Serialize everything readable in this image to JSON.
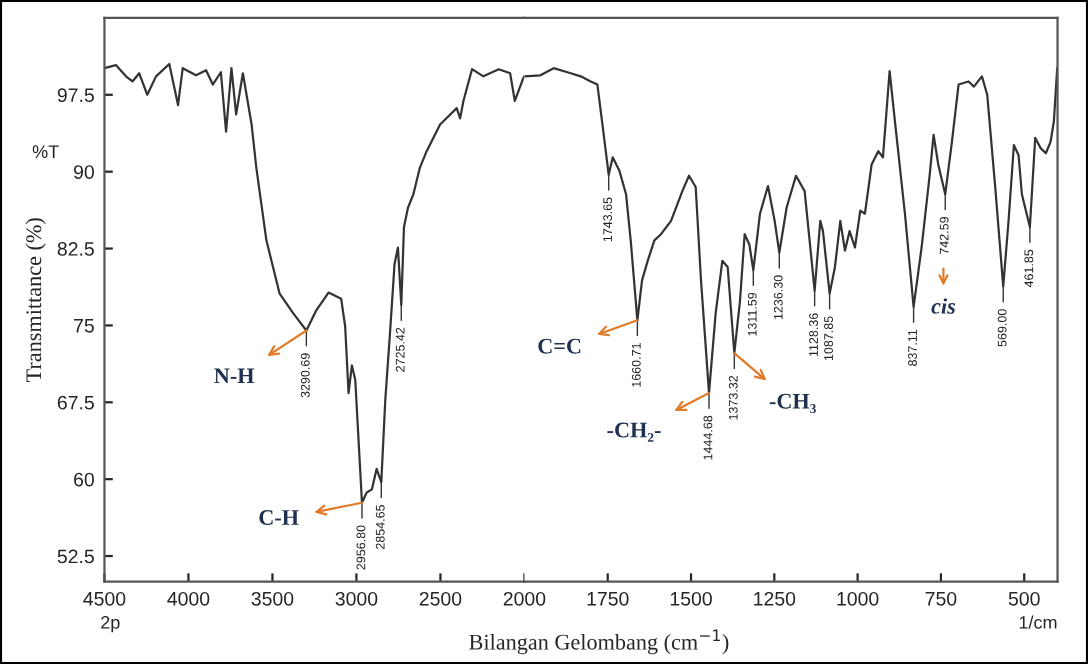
{
  "chart_data": [
    {
      "type": "line",
      "ylabel": "Transmittance (%)",
      "xlim": [
        4500,
        2000
      ],
      "xticks": [
        4500,
        4000,
        3500,
        3000,
        2500,
        2000
      ],
      "ylim": [
        50,
        105
      ],
      "yticks": [
        52.5,
        60,
        67.5,
        75,
        82.5,
        90,
        97.5
      ],
      "grid": false,
      "x": [
        4500,
        4432,
        4372,
        4333,
        4293,
        4245,
        4193,
        4114,
        4062,
        4034,
        3955,
        3895,
        3855,
        3807,
        3776,
        3744,
        3716,
        3676,
        3624,
        3596,
        3536,
        3457,
        3377,
        3298,
        3238,
        3166,
        3091,
        3067,
        3047,
        3027,
        3007,
        2967,
        2939,
        2908,
        2880,
        2852,
        2828,
        2800,
        2773,
        2753,
        2733,
        2717,
        2693,
        2661,
        2622,
        2582,
        2502,
        2403,
        2383,
        2363,
        2312,
        2244,
        2153,
        2085,
        2057,
        2005,
        2000
      ],
      "series": [
        {
          "color": "#333333",
          "values": [
            100.1,
            100.4,
            99.3,
            98.8,
            99.6,
            97.5,
            99.3,
            100.5,
            96.5,
            100.1,
            99.4,
            99.9,
            98.5,
            99.7,
            93.9,
            100.1,
            95.6,
            99.6,
            94.6,
            90.4,
            83.3,
            78.1,
            76.2,
            74.5,
            76.5,
            78.2,
            77.6,
            74.9,
            68.4,
            71.1,
            69.7,
            57.7,
            58.7,
            59.0,
            61.0,
            59.7,
            67.8,
            74.3,
            81.0,
            82.6,
            77.0,
            84.6,
            86.5,
            87.8,
            90.4,
            92.0,
            94.6,
            96.2,
            95.2,
            96.9,
            100.0,
            99.3,
            100.0,
            99.6,
            96.9,
            99.2,
            99.3
          ]
        }
      ],
      "annotations": [
        "%T",
        "2p",
        {
          "text": "3290.69",
          "x": 3298,
          "y": 74.5
        },
        {
          "text": "2956.80",
          "x": 2967,
          "y": 57.7
        },
        {
          "text": "2854.65",
          "x": 2852,
          "y": 59.7
        },
        {
          "text": "2725.42",
          "x": 2733,
          "y": 77.0
        },
        {
          "text": "N-H",
          "x": 3298,
          "y": 74.5
        },
        {
          "text": "C-H",
          "x": 2967,
          "y": 57.7
        }
      ]
    },
    {
      "type": "line",
      "xlabel": "Bilangan Gelombang (cm$^{−1}$)",
      "xlim": [
        2000,
        400
      ],
      "xticks": [
        1750,
        1500,
        1250,
        1000,
        750,
        500
      ],
      "ylim": [
        50,
        105
      ],
      "tick_labels": "x",
      "grid": false,
      "x": [
        2000,
        1952,
        1912,
        1861,
        1831,
        1801,
        1781,
        1767,
        1747,
        1735,
        1715,
        1695,
        1681,
        1661,
        1647,
        1630,
        1610,
        1590,
        1560,
        1526,
        1506,
        1486,
        1470,
        1446,
        1426,
        1406,
        1390,
        1370,
        1353,
        1339,
        1325,
        1313,
        1293,
        1269,
        1249,
        1235,
        1213,
        1185,
        1159,
        1129,
        1112,
        1104,
        1084,
        1068,
        1052,
        1038,
        1024,
        1008,
        992,
        978,
        958,
        938,
        924,
        904,
        888,
        858,
        832,
        808,
        784,
        772,
        758,
        737,
        717,
        697,
        667,
        651,
        627,
        611,
        587,
        563,
        547,
        531,
        517,
        507,
        483,
        467,
        451,
        435,
        421,
        411,
        401
      ],
      "series": [
        {
          "color": "#333333",
          "values": [
            99.3,
            99.4,
            100.1,
            99.6,
            99.3,
            98.8,
            98.5,
            94.9,
            89.7,
            91.4,
            90.1,
            87.8,
            83.3,
            75.5,
            79.4,
            81.3,
            83.3,
            83.9,
            85.2,
            88.1,
            89.6,
            88.5,
            79.4,
            68.4,
            76.2,
            81.3,
            80.7,
            72.3,
            77.4,
            83.9,
            82.9,
            80.4,
            85.9,
            88.6,
            85.2,
            82.1,
            86.5,
            89.6,
            88.1,
            78.4,
            85.2,
            84.2,
            78.1,
            80.7,
            85.2,
            82.3,
            84.2,
            82.6,
            86.2,
            85.9,
            90.7,
            92.0,
            91.4,
            99.8,
            94.9,
            85.9,
            76.8,
            82.6,
            89.6,
            93.6,
            90.7,
            87.8,
            92.9,
            98.5,
            98.8,
            98.3,
            99.3,
            97.5,
            88.5,
            78.8,
            85.2,
            92.6,
            91.6,
            87.8,
            84.6,
            93.3,
            92.3,
            91.8,
            92.9,
            94.9,
            100.1
          ]
        }
      ],
      "annotations": [
        "1/cm",
        "cis",
        {
          "text": "1743.65",
          "x": 1747,
          "y": 89.7
        },
        {
          "text": "1660.71",
          "x": 1661,
          "y": 75.5
        },
        {
          "text": "1444.68",
          "x": 1446,
          "y": 68.4
        },
        {
          "text": "1373.32",
          "x": 1370,
          "y": 72.3
        },
        {
          "text": "1311.59",
          "x": 1313,
          "y": 80.4
        },
        {
          "text": "1236.30",
          "x": 1235,
          "y": 82.1
        },
        {
          "text": "1128.36",
          "x": 1129,
          "y": 78.4
        },
        {
          "text": "1087.85",
          "x": 1084,
          "y": 78.1
        },
        {
          "text": "837.11",
          "x": 832,
          "y": 76.8
        },
        {
          "text": "742.59",
          "x": 737,
          "y": 87.8
        },
        {
          "text": "569.00",
          "x": 563,
          "y": 78.8
        },
        {
          "text": "461.85",
          "x": 483,
          "y": 84.6
        },
        {
          "text": "C=C",
          "x": 1661,
          "y": 75.5
        },
        {
          "text": "-CH₂-",
          "x": 1446,
          "y": 68.4
        },
        {
          "text": "-CH₃",
          "x": 1370,
          "y": 72.3
        }
      ]
    }
  ]
}
